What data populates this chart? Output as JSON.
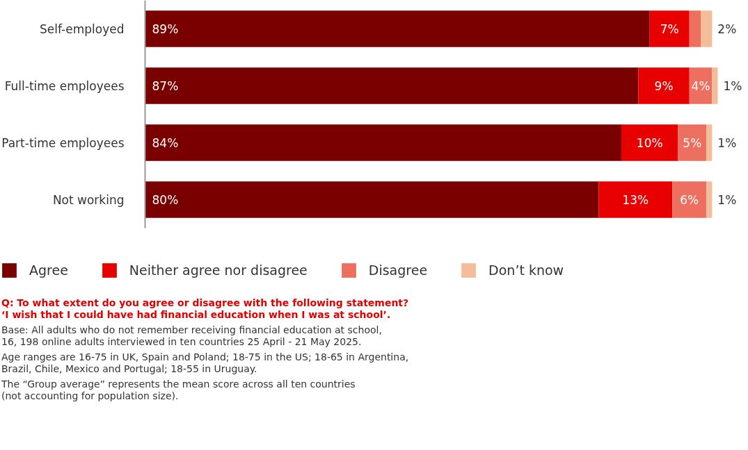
{
  "chart_data": {
    "type": "bar",
    "orientation": "horizontal",
    "stacked": true,
    "categories": [
      "Self-employed",
      "Full-time employees",
      "Part-time employees",
      "Not working"
    ],
    "series": [
      {
        "name": "Agree",
        "color": "#7a0000",
        "values": [
          89,
          87,
          84,
          80
        ],
        "value_labels": [
          "89%",
          "87%",
          "84%",
          "80%"
        ]
      },
      {
        "name": "Neither agree nor disagree",
        "color": "#e80000",
        "values": [
          7,
          9,
          10,
          13
        ],
        "value_labels": [
          "7%",
          "9%",
          "10%",
          "13%"
        ]
      },
      {
        "name": "Disagree",
        "color": "#ec6f60",
        "values": [
          2,
          4,
          5,
          6
        ],
        "value_labels": [
          null,
          "4%",
          "5%",
          "6%"
        ]
      },
      {
        "name": "Don’t know",
        "color": "#f2bd98",
        "values": [
          2,
          1,
          1,
          1
        ],
        "value_labels": [
          "2%",
          "1%",
          "1%",
          "1%"
        ]
      }
    ],
    "xlim": [
      0,
      101
    ],
    "tick_labels": "y",
    "grid": false,
    "legend": "bottom",
    "annotations": [
      "Q: To what extent do you agree or disagree with the following statement?\n‘I wish that I could have had financial education when I was at school’.",
      "Base: All adults who do not remember receiving financial education at school,\n16, 198 online adults interviewed in ten countries 25 April - 21 May 2025.",
      "Age ranges are 16-75 in UK, Spain and Poland; 18-75 in the US; 18-65 in Argentina,\nBrazil, Chile, Mexico and Portugal; 18-55 in Uruguay.",
      "The “Group average” represents the mean score across all ten countries\n(not accounting for population size)."
    ]
  }
}
